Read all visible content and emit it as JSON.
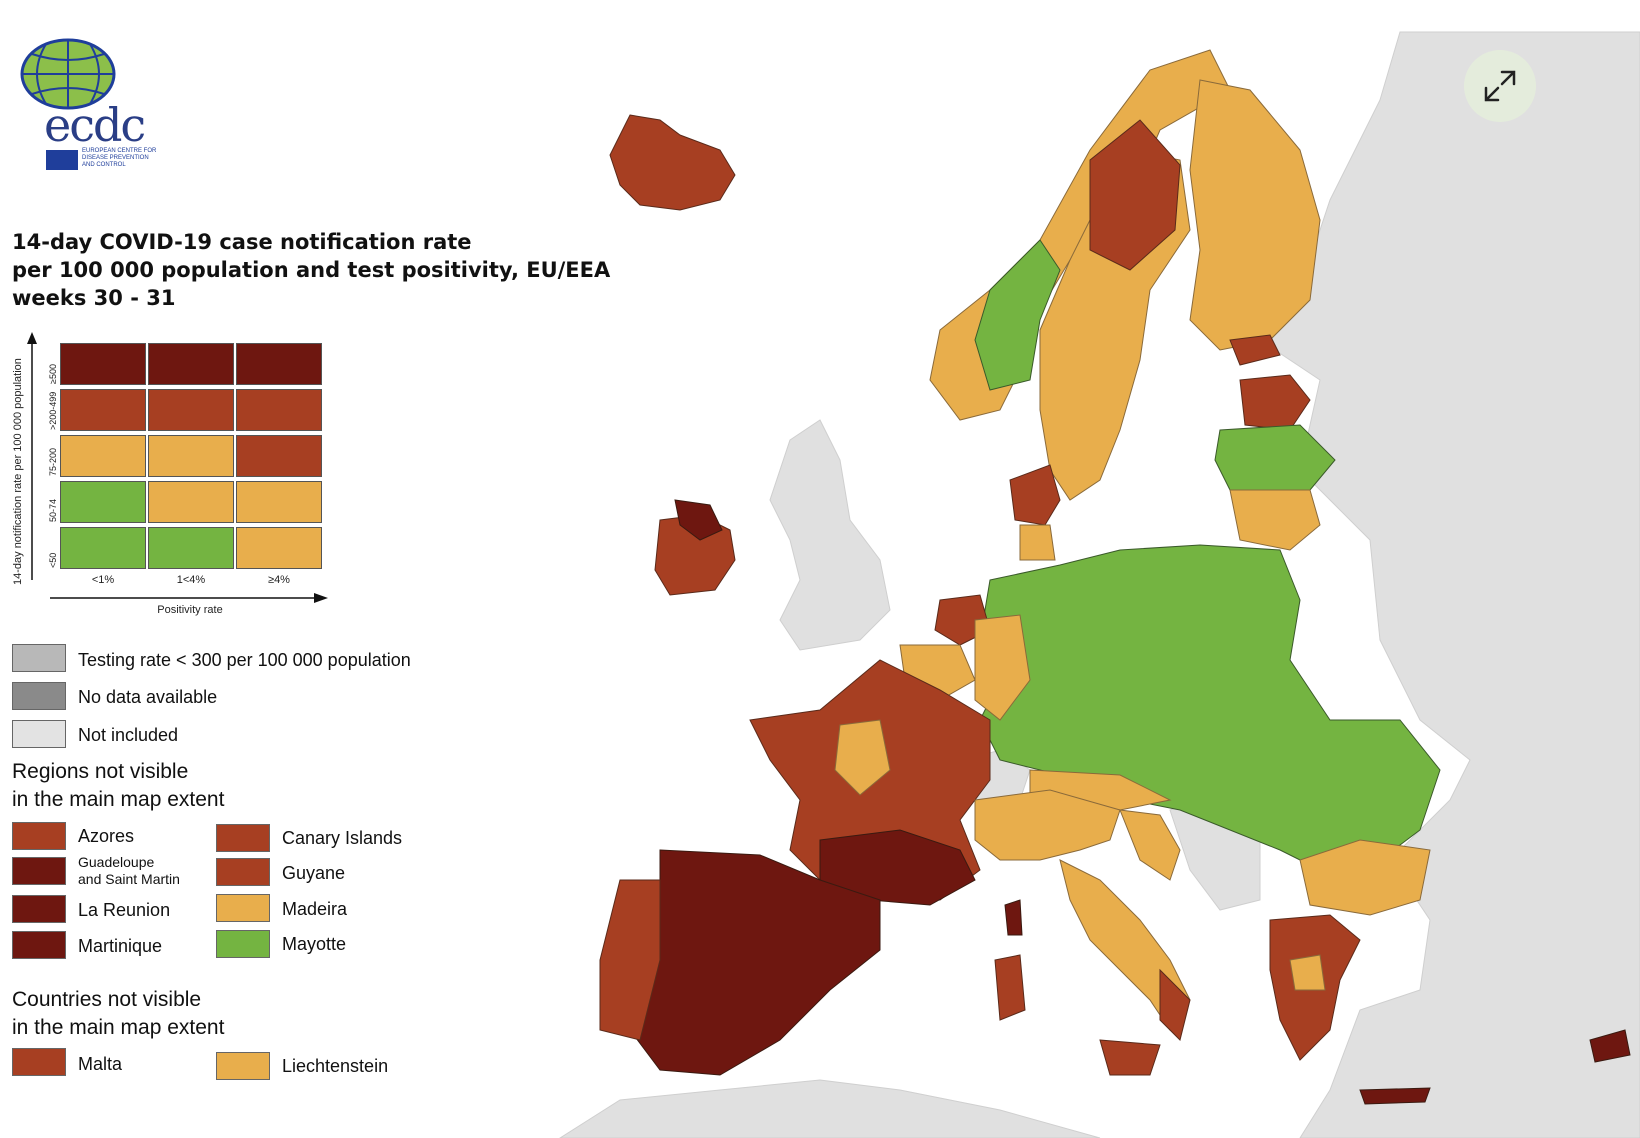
{
  "logo": {
    "word": "ecdc",
    "org_line1": "EUROPEAN CENTRE FOR",
    "org_line2": "DISEASE PREVENTION",
    "org_line3": "AND CONTROL"
  },
  "title": {
    "line1": "14-day COVID-19 case notification rate",
    "line2": "per 100 000 population and test positivity, EU/EEA",
    "line3": "weeks 30 - 31"
  },
  "matrix": {
    "y_axis_label": "14-day notification rate per 100 000 population",
    "x_axis_label": "Positivity rate",
    "rows": [
      "≥500",
      ">200-499",
      "75-200",
      "50-74",
      "<50"
    ],
    "cols": [
      "<1%",
      "1<4%",
      "≥4%"
    ],
    "colors": [
      [
        "#6e1710",
        "#6e1710",
        "#6e1710"
      ],
      [
        "#a73f22",
        "#a73f22",
        "#a73f22"
      ],
      [
        "#e8ae4c",
        "#e8ae4c",
        "#a73f22"
      ],
      [
        "#74b441",
        "#e8ae4c",
        "#e8ae4c"
      ],
      [
        "#74b441",
        "#74b441",
        "#e8ae4c"
      ]
    ]
  },
  "legend": {
    "testing": "Testing rate < 300 per 100 000 population",
    "no_data": "No data available",
    "not_included": "Not included",
    "regions_heading_1": "Regions not visible",
    "regions_heading_2": "in the main map extent",
    "regions": {
      "azores": "Azores",
      "canary": "Canary Islands",
      "guadeloupe_1": "Guadeloupe",
      "guadeloupe_2": "and Saint Martin",
      "guyane": "Guyane",
      "reunion": "La Reunion",
      "madeira": "Madeira",
      "martinique": "Martinique",
      "mayotte": "Mayotte"
    },
    "countries_heading_1": "Countries not visible",
    "countries_heading_2": "in the main map extent",
    "countries": {
      "malta": "Malta",
      "liechtenstein": "Liechtenstein"
    }
  },
  "colors": {
    "dark_red": "#6e1710",
    "red": "#a73f22",
    "orange": "#e8ae4c",
    "green": "#74b441",
    "testing_gray": "#b8b8b8",
    "no_data_gray": "#8a8a8a",
    "not_included": "#e3e3e3"
  },
  "icons": {
    "expand": "expand-icon",
    "logo": "ecdc-globe-logo"
  }
}
